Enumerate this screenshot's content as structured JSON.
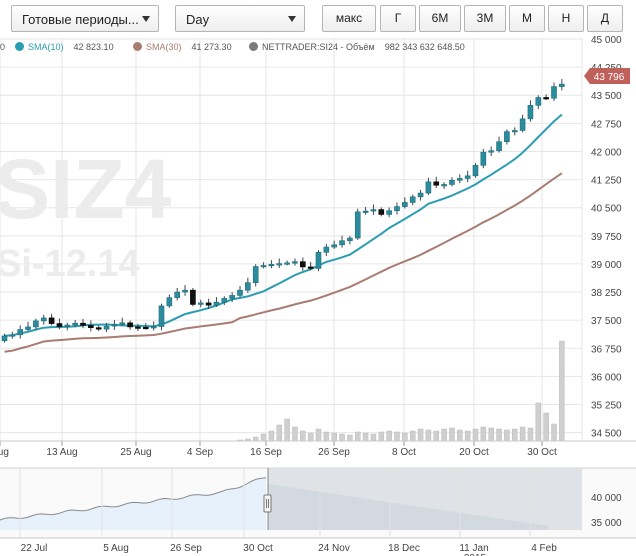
{
  "toolbar": {
    "period_dropdown": "Готовые периоды...",
    "interval_dropdown": "Day",
    "range_buttons": [
      "макс",
      "Г",
      "6М",
      "3М",
      "М",
      "Н",
      "Д"
    ]
  },
  "legend": {
    "left_cut": "0",
    "items": [
      {
        "name": "SMA(10)",
        "value": "42 823.10",
        "color": "#2a9db2"
      },
      {
        "name": "SMA(30)",
        "value": "41 273.30",
        "color": "#a97c72"
      },
      {
        "name": "NETTRADER:SI24 - Объём",
        "value": "982 343 632 648.50",
        "color": "#7a7a7a"
      }
    ]
  },
  "watermark": {
    "symbol": "SIZ4",
    "contract": "Si-12.14"
  },
  "price_badge": "43 796",
  "colors": {
    "up": "#2b8c9e",
    "down": "#111111",
    "sma10": "#2a9db2",
    "sma30": "#a97c72",
    "volume": "#cfcfcf",
    "badge": "#c0605a",
    "navigator_fill": "#e7f1fb"
  },
  "chart_data": {
    "type": "candlestick",
    "y_axis": {
      "ticks": [
        "45 000",
        "44 250",
        "43 500",
        "42 750",
        "42 000",
        "41 250",
        "40 500",
        "39 750",
        "39 000",
        "38 250",
        "37 500",
        "36 750",
        "36 000",
        "35 250",
        "34 500"
      ],
      "min": 34250,
      "max": 45000
    },
    "x_axis": {
      "labels": [
        "Aug",
        "13 Aug",
        "25 Aug",
        "4 Sep",
        "16 Sep",
        "26 Sep",
        "8 Oct",
        "20 Oct",
        "30 Oct"
      ]
    },
    "candles_close": [
      37080,
      37110,
      37250,
      37320,
      37480,
      37560,
      37410,
      37330,
      37370,
      37420,
      37360,
      37300,
      37260,
      37340,
      37390,
      37430,
      37320,
      37310,
      37300,
      37330,
      37880,
      38100,
      38250,
      38300,
      37920,
      37960,
      37900,
      37980,
      38080,
      38160,
      38300,
      38500,
      38930,
      38960,
      38990,
      39010,
      39030,
      39060,
      38920,
      38880,
      39310,
      39450,
      39510,
      39620,
      39690,
      40390,
      40410,
      40450,
      40320,
      40420,
      40530,
      40640,
      40790,
      40890,
      41190,
      41100,
      41120,
      41230,
      41280,
      41350,
      41630,
      41980,
      42020,
      42260,
      42530,
      42560,
      42870,
      43230,
      43440,
      43420,
      43730,
      43796
    ],
    "candles_open": [
      36950,
      37080,
      37110,
      37250,
      37320,
      37480,
      37560,
      37410,
      37330,
      37370,
      37420,
      37360,
      37300,
      37260,
      37340,
      37390,
      37430,
      37320,
      37310,
      37300,
      37330,
      37880,
      38100,
      38250,
      38300,
      37920,
      37960,
      37900,
      37980,
      38080,
      38160,
      38300,
      38500,
      38930,
      38960,
      38990,
      39010,
      39030,
      39060,
      38920,
      38880,
      39310,
      39450,
      39510,
      39620,
      39690,
      40390,
      40410,
      40450,
      40320,
      40420,
      40530,
      40640,
      40790,
      40890,
      41190,
      41100,
      41120,
      41230,
      41280,
      41350,
      41630,
      41980,
      42020,
      42260,
      42530,
      42560,
      42870,
      43230,
      43440,
      43420,
      43730
    ],
    "series": [
      {
        "name": "SMA(10)",
        "last": 42823.1
      },
      {
        "name": "SMA(30)",
        "last": 41273.3
      },
      {
        "name": "NETTRADER:SI24 - Объём",
        "last": 982343632648.5
      }
    ],
    "navigator": {
      "y_labels": [
        "40 000",
        "35 000"
      ],
      "x_labels": [
        "22 Jul",
        "5 Aug",
        "26 Sep",
        "30 Oct",
        "24 Nov",
        "18 Dec",
        "11 Jan",
        "4 Feb"
      ],
      "year_label": "2015"
    }
  }
}
